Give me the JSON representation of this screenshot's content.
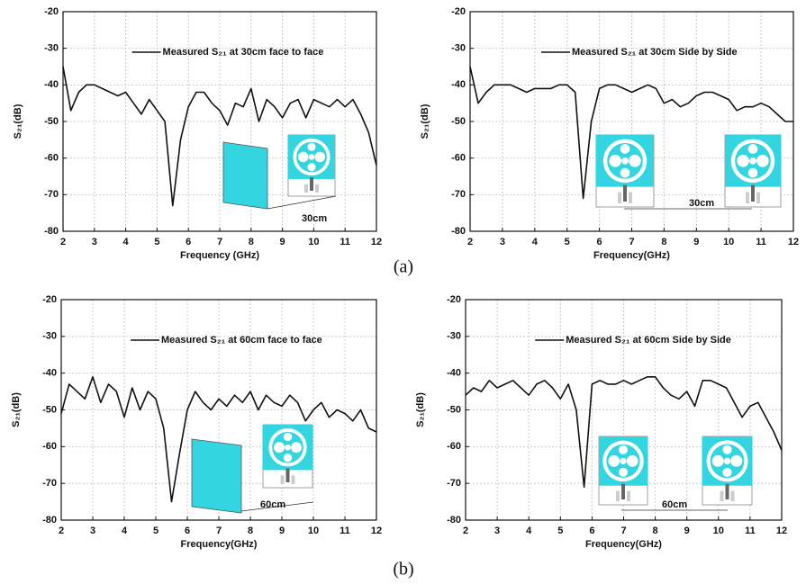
{
  "captions": [
    "(a)",
    "(b)"
  ],
  "chart_data": [
    {
      "type": "line",
      "x_label": "Frequency (GHz)",
      "y_label": "S₂₁(dB)",
      "xlim": [
        2,
        12
      ],
      "xticks": [
        2,
        3,
        4,
        5,
        6,
        7,
        8,
        9,
        10,
        11,
        12
      ],
      "ylim": [
        -80,
        -20
      ],
      "yticks": [
        -80,
        -70,
        -60,
        -50,
        -40,
        -30,
        -20
      ],
      "grid": true,
      "legend": "upper left",
      "annotation": "30cm",
      "x": [
        2,
        2.25,
        2.5,
        2.75,
        3,
        3.25,
        3.5,
        3.75,
        4,
        4.25,
        4.5,
        4.75,
        5,
        5.25,
        5.5,
        5.75,
        6,
        6.25,
        6.5,
        6.75,
        7,
        7.25,
        7.5,
        7.75,
        8,
        8.25,
        8.5,
        8.75,
        9,
        9.25,
        9.5,
        9.75,
        10,
        10.25,
        10.5,
        10.75,
        11,
        11.25,
        11.5,
        11.75,
        12
      ],
      "series": [
        {
          "name": "Measured S₂₁ at 30cm face to face",
          "color": "#111111",
          "values": [
            -35,
            -47,
            -42,
            -40,
            -40,
            -41,
            -42,
            -43,
            -42,
            -45,
            -48,
            -44,
            -47,
            -50,
            -73,
            -55,
            -46,
            -42,
            -42,
            -45,
            -47,
            -51,
            -45,
            -46,
            -41,
            -50,
            -44,
            -46,
            -49,
            -45,
            -44,
            -49,
            -44,
            -45,
            -46,
            -44,
            -46,
            -44,
            -48,
            -53,
            -62
          ]
        }
      ]
    },
    {
      "type": "line",
      "x_label": "Frequency(GHz)",
      "y_label": "S₂₁(dB)",
      "xlim": [
        2,
        12
      ],
      "xticks": [
        2,
        3,
        4,
        5,
        6,
        7,
        8,
        9,
        10,
        11,
        12
      ],
      "ylim": [
        -80,
        -20
      ],
      "yticks": [
        -80,
        -70,
        -60,
        -50,
        -40,
        -30,
        -20
      ],
      "grid": true,
      "legend": "upper left",
      "annotation": "30cm",
      "x": [
        2,
        2.25,
        2.5,
        2.75,
        3,
        3.25,
        3.5,
        3.75,
        4,
        4.25,
        4.5,
        4.75,
        5,
        5.25,
        5.5,
        5.75,
        6,
        6.25,
        6.5,
        6.75,
        7,
        7.25,
        7.5,
        7.75,
        8,
        8.25,
        8.5,
        8.75,
        9,
        9.25,
        9.5,
        9.75,
        10,
        10.25,
        10.5,
        10.75,
        11,
        11.25,
        11.5,
        11.75,
        12
      ],
      "series": [
        {
          "name": "Measured S₂₁ at 30cm Side by Side",
          "color": "#111111",
          "values": [
            -35,
            -45,
            -42,
            -40,
            -40,
            -40,
            -41,
            -42,
            -41,
            -41,
            -41,
            -40,
            -40,
            -42,
            -71,
            -50,
            -41,
            -40,
            -40,
            -41,
            -42,
            -41,
            -40,
            -41,
            -45,
            -44,
            -46,
            -45,
            -43,
            -42,
            -42,
            -43,
            -44,
            -47,
            -46,
            -46,
            -45,
            -46,
            -48,
            -50,
            -50
          ]
        }
      ]
    },
    {
      "type": "line",
      "x_label": "Frequency(GHz)",
      "y_label": "S₂₁(dB)",
      "xlim": [
        2,
        12
      ],
      "xticks": [
        2,
        3,
        4,
        5,
        6,
        7,
        8,
        9,
        10,
        11,
        12
      ],
      "ylim": [
        -80,
        -20
      ],
      "yticks": [
        -80,
        -70,
        -60,
        -50,
        -40,
        -30,
        -20
      ],
      "grid": true,
      "legend": "upper left",
      "annotation": "60cm",
      "x": [
        2,
        2.25,
        2.5,
        2.75,
        3,
        3.25,
        3.5,
        3.75,
        4,
        4.25,
        4.5,
        4.75,
        5,
        5.25,
        5.5,
        5.75,
        6,
        6.25,
        6.5,
        6.75,
        7,
        7.25,
        7.5,
        7.75,
        8,
        8.25,
        8.5,
        8.75,
        9,
        9.25,
        9.5,
        9.75,
        10,
        10.25,
        10.5,
        10.75,
        11,
        11.25,
        11.5,
        11.75,
        12
      ],
      "series": [
        {
          "name": "Measured S₂₁ at 60cm face to face",
          "color": "#111111",
          "values": [
            -51,
            -43,
            -45,
            -47,
            -41,
            -48,
            -43,
            -45,
            -52,
            -44,
            -50,
            -45,
            -47,
            -55,
            -75,
            -62,
            -50,
            -45,
            -48,
            -50,
            -47,
            -49,
            -46,
            -48,
            -45,
            -50,
            -46,
            -48,
            -49,
            -46,
            -48,
            -53,
            -50,
            -48,
            -52,
            -50,
            -51,
            -53,
            -50,
            -55,
            -56
          ]
        }
      ]
    },
    {
      "type": "line",
      "x_label": "Frequency(GHz)",
      "y_label": "S₂₁(dB)",
      "xlim": [
        2,
        12
      ],
      "xticks": [
        2,
        3,
        4,
        5,
        6,
        7,
        8,
        9,
        10,
        11,
        12
      ],
      "ylim": [
        -80,
        -20
      ],
      "yticks": [
        -80,
        -70,
        -60,
        -50,
        -40,
        -30,
        -20
      ],
      "grid": true,
      "legend": "upper left",
      "annotation": "60cm",
      "x": [
        2,
        2.25,
        2.5,
        2.75,
        3,
        3.25,
        3.5,
        3.75,
        4,
        4.25,
        4.5,
        4.75,
        5,
        5.25,
        5.5,
        5.75,
        6,
        6.25,
        6.5,
        6.75,
        7,
        7.25,
        7.5,
        7.75,
        8,
        8.25,
        8.5,
        8.75,
        9,
        9.25,
        9.5,
        9.75,
        10,
        10.25,
        10.5,
        10.75,
        11,
        11.25,
        11.5,
        11.75,
        12
      ],
      "series": [
        {
          "name": "Measured S₂₁ at 60cm Side by Side",
          "color": "#111111",
          "values": [
            -46,
            -44,
            -45,
            -42,
            -44,
            -43,
            -42,
            -44,
            -46,
            -43,
            -42,
            -44,
            -47,
            -43,
            -50,
            -71,
            -43,
            -42,
            -43,
            -43,
            -42,
            -43,
            -42,
            -41,
            -41,
            -44,
            -46,
            -47,
            -45,
            -49,
            -42,
            -42,
            -43,
            -44,
            -48,
            -52,
            -49,
            -48,
            -52,
            -56,
            -61
          ]
        }
      ]
    }
  ]
}
